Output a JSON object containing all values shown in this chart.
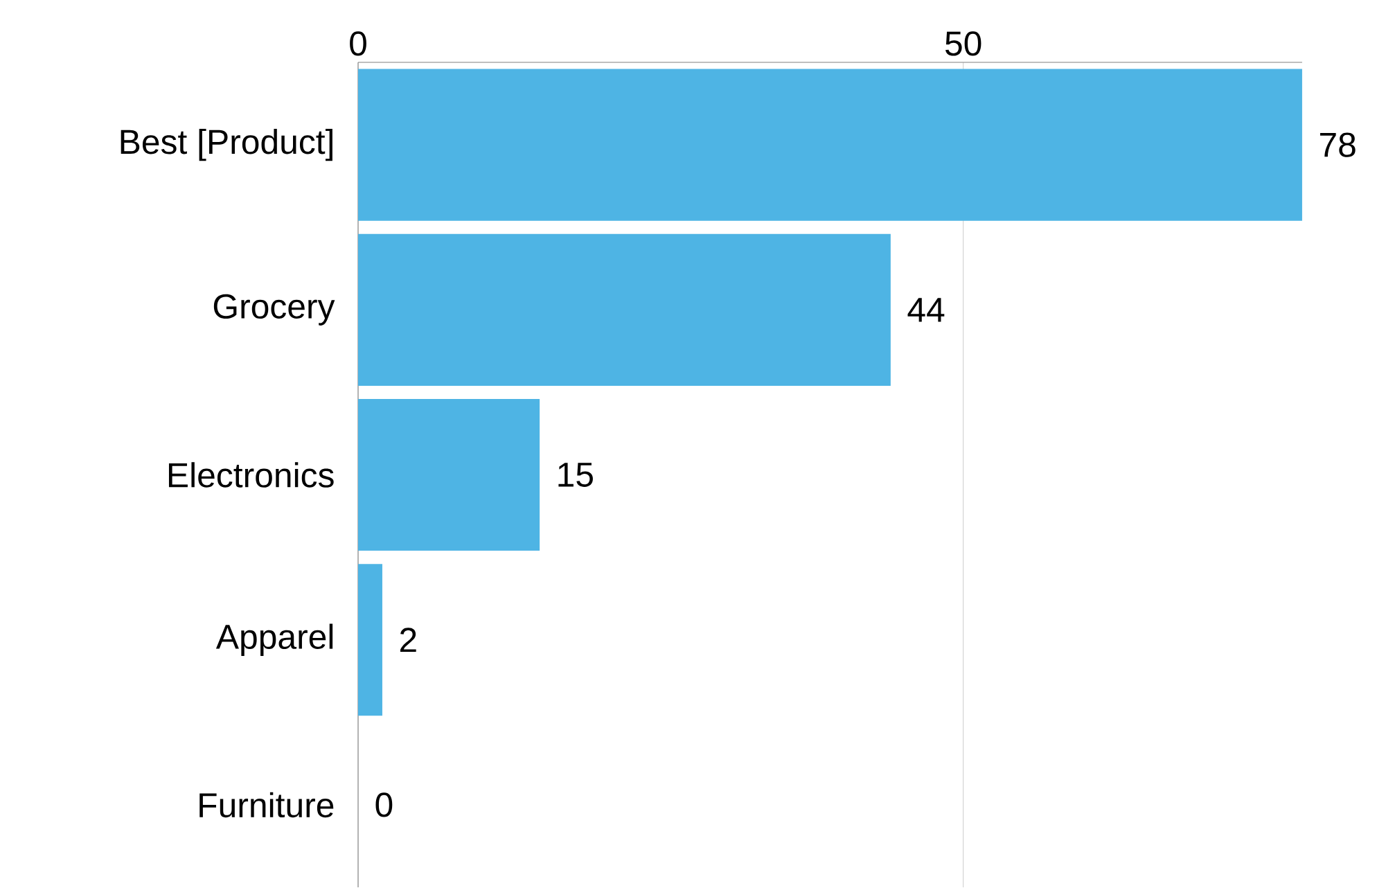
{
  "chart_data": {
    "type": "bar",
    "orientation": "horizontal",
    "categories": [
      "Best [Product]",
      "Grocery",
      "Electronics",
      "Apparel",
      "Furniture"
    ],
    "values": [
      78,
      44,
      15,
      2,
      0
    ],
    "color": "#4eb4e4",
    "xlim": [
      0,
      78
    ],
    "xticks": [
      0,
      50
    ],
    "grid": "x",
    "data_labels": true
  }
}
